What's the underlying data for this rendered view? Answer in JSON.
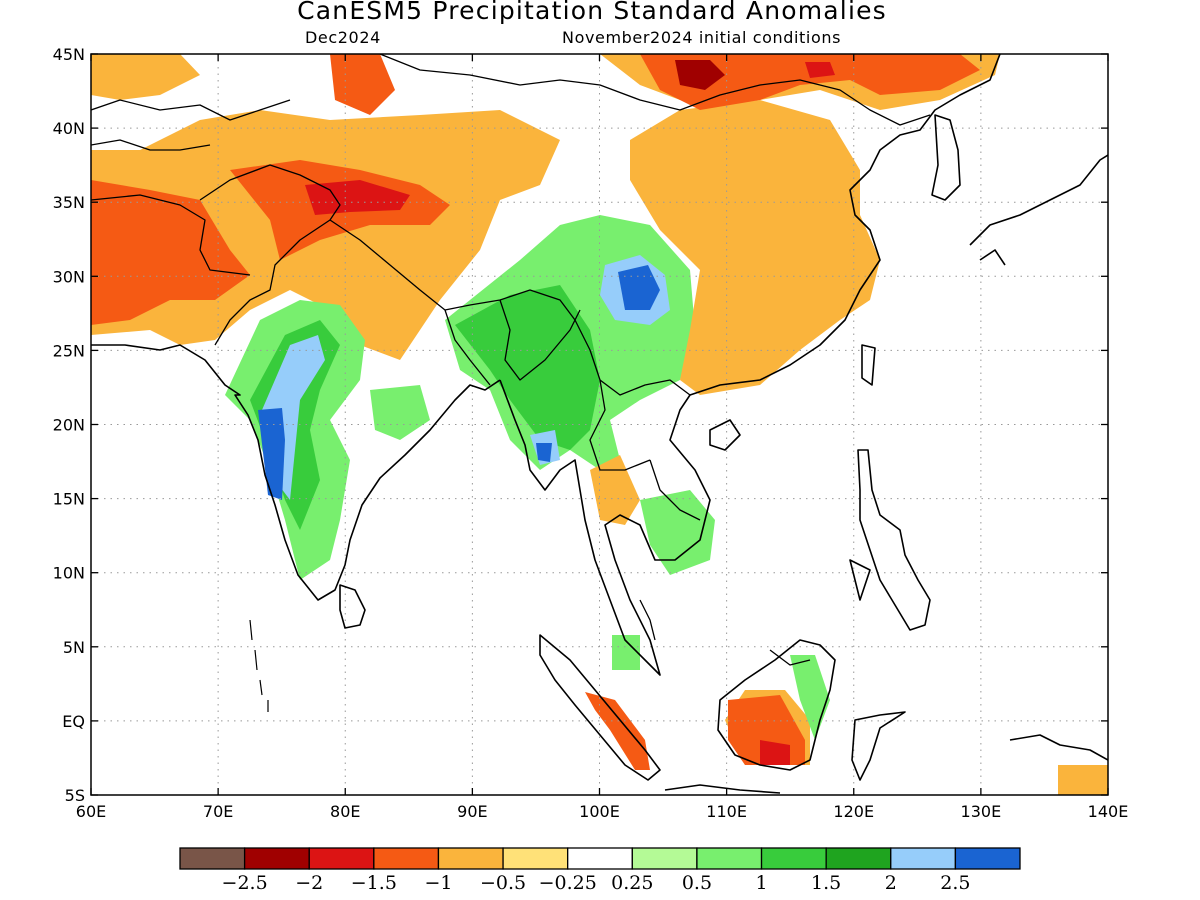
{
  "title": "CanESM5 Precipitation Standard Anomalies",
  "subtitle_left": "Dec2024",
  "subtitle_right": "November2024 initial conditions",
  "x_ticks": [
    "60E",
    "70E",
    "80E",
    "90E",
    "100E",
    "110E",
    "120E",
    "130E",
    "140E"
  ],
  "y_ticks": [
    "45N",
    "40N",
    "35N",
    "30N",
    "25N",
    "20N",
    "15N",
    "10N",
    "5N",
    "EQ",
    "5S"
  ],
  "lon_range": [
    60,
    140
  ],
  "lat_range": [
    -5,
    45
  ],
  "colorbar": {
    "colors": [
      "#795548",
      "#a00000",
      "#dc1414",
      "#f55a14",
      "#fab43c",
      "#ffe178",
      "#ffffff",
      "#b4fa96",
      "#78ef6e",
      "#38cc3c",
      "#1fa41f",
      "#96cdfa",
      "#1a64d2"
    ],
    "labels": [
      "−2.5",
      "−2",
      "−1.5",
      "−1",
      "−0.5",
      "−0.25",
      "0.25",
      "0.5",
      "1",
      "1.5",
      "2",
      "2.5"
    ]
  },
  "colors": {
    "coast": "#000000",
    "grid": "#999999"
  }
}
